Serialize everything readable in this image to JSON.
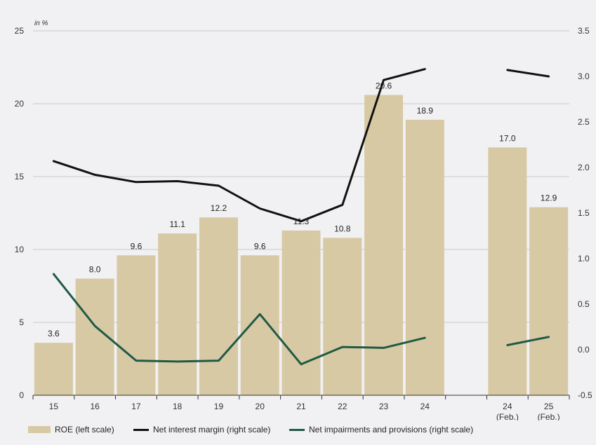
{
  "chart_data": {
    "type": "bar",
    "unit_label": "in %",
    "categories": [
      {
        "label": "15",
        "sublabel": ""
      },
      {
        "label": "16",
        "sublabel": ""
      },
      {
        "label": "17",
        "sublabel": ""
      },
      {
        "label": "18",
        "sublabel": ""
      },
      {
        "label": "19",
        "sublabel": ""
      },
      {
        "label": "20",
        "sublabel": ""
      },
      {
        "label": "21",
        "sublabel": ""
      },
      {
        "label": "22",
        "sublabel": ""
      },
      {
        "label": "23",
        "sublabel": ""
      },
      {
        "label": "24",
        "sublabel": ""
      },
      {
        "label": "",
        "sublabel": ""
      },
      {
        "label": "24",
        "sublabel": "(Feb.)"
      },
      {
        "label": "25",
        "sublabel": "(Feb.)"
      }
    ],
    "left_axis": {
      "ylim": [
        0,
        25
      ],
      "ticks": [
        0,
        5,
        10,
        15,
        20,
        25
      ]
    },
    "right_axis": {
      "ylim": [
        -0.5,
        3.5
      ],
      "ticks": [
        "-0.5",
        "0.0",
        "0.5",
        "1.0",
        "1.5",
        "2.0",
        "2.5",
        "3.0",
        "3.5"
      ]
    },
    "grid": true,
    "legend_position": "bottom",
    "series": [
      {
        "name": "ROE (left scale)",
        "kind": "bar",
        "axis": "left",
        "color": "#d8c9a5",
        "values": [
          3.6,
          8.0,
          9.6,
          11.1,
          12.2,
          9.6,
          11.3,
          10.8,
          20.6,
          18.9,
          null,
          17.0,
          12.9
        ],
        "labels": [
          "3.6",
          "8.0",
          "9.6",
          "11.1",
          "12.2",
          "9.6",
          "11.3",
          "10.8",
          "20.6",
          "18.9",
          "",
          "17.0",
          "12.9"
        ]
      },
      {
        "name": "Net interest margin (right scale)",
        "kind": "line",
        "axis": "right",
        "color": "#111111",
        "values": [
          2.07,
          1.92,
          1.84,
          1.85,
          1.8,
          1.55,
          1.41,
          1.59,
          2.96,
          3.08,
          null,
          3.07,
          3.0
        ]
      },
      {
        "name": "Net impairments and provisions (right scale)",
        "kind": "line",
        "axis": "right",
        "color": "#1f5a45",
        "values": [
          0.83,
          0.26,
          -0.12,
          -0.13,
          -0.12,
          0.39,
          -0.16,
          0.03,
          0.02,
          0.13,
          null,
          0.05,
          0.14
        ]
      }
    ]
  }
}
